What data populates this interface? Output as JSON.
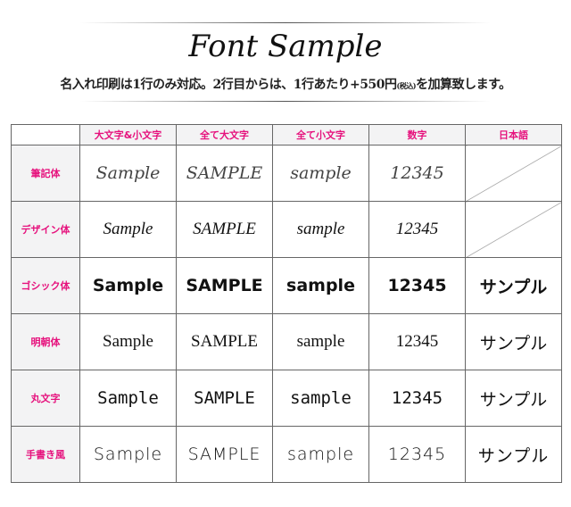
{
  "title": "Font Sample",
  "subtitle": {
    "main": "名入れ印刷は1行のみ対応。2行目からは、1行あたり+550円",
    "tax": "(税込)",
    "end": "を加算致します。"
  },
  "columns": [
    "大文字&小文字",
    "全て大文字",
    "全て小文字",
    "数字",
    "日本語"
  ],
  "rows": [
    {
      "label": "筆記体",
      "style": "script",
      "cells": [
        "Sample",
        "SAMPLE",
        "sample",
        "12345",
        null
      ]
    },
    {
      "label": "デザイン体",
      "style": "design",
      "cells": [
        "Sample",
        "SAMPLE",
        "sample",
        "12345",
        null
      ]
    },
    {
      "label": "ゴシック体",
      "style": "gothic",
      "cells": [
        "Sample",
        "SAMPLE",
        "sample",
        "12345",
        "サンプル"
      ]
    },
    {
      "label": "明朝体",
      "style": "mincho",
      "cells": [
        "Sample",
        "SAMPLE",
        "sample",
        "12345",
        "サンプル"
      ]
    },
    {
      "label": "丸文字",
      "style": "maru",
      "cells": [
        "Sample",
        "SAMPLE",
        "sample",
        "12345",
        "サンプル"
      ]
    },
    {
      "label": "手書き風",
      "style": "hand",
      "cells": [
        "Sample",
        "SAMPLE",
        "sample",
        "12345",
        "サンプル"
      ]
    }
  ],
  "colors": {
    "accent": "#e6127d",
    "header_bg": "#f3f3f4"
  }
}
